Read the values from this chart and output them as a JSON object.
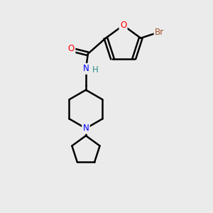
{
  "background_color": "#ebebeb",
  "bond_color": "#000000",
  "atom_colors": {
    "O": "#ff0000",
    "N": "#0000ff",
    "Br": "#a0522d",
    "H": "#2e8b8b",
    "C": "#000000"
  },
  "figsize": [
    3.0,
    3.0
  ],
  "dpi": 100
}
